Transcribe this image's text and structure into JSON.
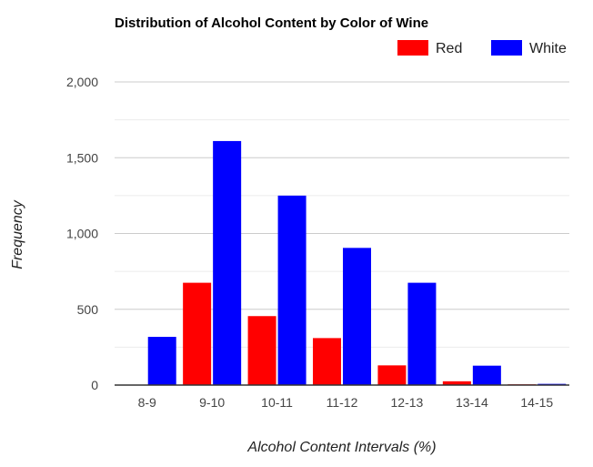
{
  "chart_data": {
    "type": "bar",
    "title": "Distribution of Alcohol Content by Color of Wine",
    "xlabel": "Alcohol Content Intervals (%)",
    "ylabel": "Frequency",
    "categories": [
      "8-9",
      "9-10",
      "10-11",
      "11-12",
      "12-13",
      "13-14",
      "14-15"
    ],
    "series": [
      {
        "name": "Red",
        "color": "#ff0000",
        "values": [
          0,
          675,
          455,
          310,
          130,
          25,
          5
        ]
      },
      {
        "name": "White",
        "color": "#0000ff",
        "values": [
          318,
          1610,
          1250,
          905,
          675,
          128,
          8
        ]
      }
    ],
    "ylim": [
      0,
      2000
    ],
    "yticks": [
      0,
      500,
      1000,
      1500,
      2000
    ],
    "ytick_labels": [
      "0",
      "500",
      "1,000",
      "1,500",
      "2,000"
    ],
    "grid": true,
    "legend_position": "top-right"
  }
}
